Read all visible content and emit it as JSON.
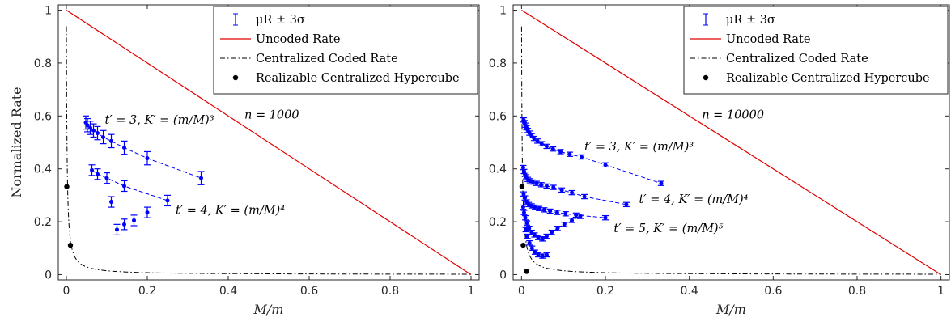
{
  "chart_data": [
    {
      "type": "scatter",
      "panel": "left",
      "xlabel": "M/m",
      "ylabel": "Normalized Rate",
      "xlim": [
        -0.02,
        1.02
      ],
      "ylim": [
        -0.02,
        1.02
      ],
      "xticks": [
        "0",
        "0.2",
        "0.4",
        "0.6",
        "0.8",
        "1"
      ],
      "yticks": [
        "0",
        "0.2",
        "0.4",
        "0.6",
        "0.8",
        "1"
      ],
      "grid": false,
      "legend_position": "top-right",
      "legend": [
        "μR ± 3σ",
        "Uncoded Rate",
        "Centralized Coded Rate",
        "Realizable Centralized Hypercube"
      ],
      "n_label": "n = 1000",
      "annotations": [
        {
          "text": "t′ = 3, K′ = (m/M)³",
          "x": 0.095,
          "y": 0.57
        },
        {
          "text": "t′ = 4, K′ = (m/M)⁴",
          "x": 0.27,
          "y": 0.23
        }
      ],
      "uncoded_rate": {
        "x": [
          0,
          1
        ],
        "y": [
          1,
          0
        ]
      },
      "hypercube_points": {
        "x": [
          0.001,
          0.01
        ],
        "y": [
          0.333,
          0.111
        ]
      },
      "series": [
        {
          "name": "t′ = 3",
          "x": [
            0.048,
            0.052,
            0.059,
            0.067,
            0.077,
            0.091,
            0.111,
            0.143,
            0.2,
            0.333
          ],
          "y": [
            0.575,
            0.565,
            0.555,
            0.545,
            0.535,
            0.52,
            0.505,
            0.48,
            0.44,
            0.365
          ],
          "err": 0.025
        },
        {
          "name": "t′ = 4",
          "x": [
            0.063,
            0.077,
            0.1,
            0.143,
            0.25
          ],
          "y": [
            0.395,
            0.38,
            0.365,
            0.335,
            0.28
          ],
          "err": 0.02
        },
        {
          "name": "t′ = 4 lower",
          "x": [
            0.111,
            0.125,
            0.143,
            0.167,
            0.2
          ],
          "y": [
            0.275,
            0.17,
            0.19,
            0.205,
            0.235
          ],
          "err": 0.02
        }
      ]
    },
    {
      "type": "scatter",
      "panel": "right",
      "xlabel": "M/m",
      "xlim": [
        -0.02,
        1.02
      ],
      "ylim": [
        -0.02,
        1.02
      ],
      "xticks": [
        "0",
        "0.2",
        "0.4",
        "0.6",
        "0.8",
        "1"
      ],
      "yticks": [
        "0",
        "0.2",
        "0.4",
        "0.6",
        "0.8",
        "1"
      ],
      "grid": false,
      "legend_position": "top-right",
      "legend": [
        "μR ± 3σ",
        "Uncoded Rate",
        "Centralized Coded Rate",
        "Realizable Centralized Hypercube"
      ],
      "n_label": "n = 10000",
      "annotations": [
        {
          "text": "t′ = 3, K′ = (m/M)³",
          "x": 0.15,
          "y": 0.47
        },
        {
          "text": "t′ = 4, K′ = (m/M)⁴",
          "x": 0.28,
          "y": 0.27
        },
        {
          "text": "t′ = 5, K′ = (m/M)⁵",
          "x": 0.22,
          "y": 0.16
        }
      ],
      "uncoded_rate": {
        "x": [
          0,
          1
        ],
        "y": [
          1,
          0
        ]
      },
      "hypercube_points": {
        "x": [
          0.001,
          0.004,
          0.012
        ],
        "y": [
          0.333,
          0.111,
          0.012
        ]
      },
      "series": [
        {
          "name": "t′ = 3",
          "x": [
            0.005,
            0.007,
            0.009,
            0.012,
            0.015,
            0.019,
            0.024,
            0.03,
            0.038,
            0.048,
            0.06,
            0.075,
            0.093,
            0.115,
            0.143,
            0.2,
            0.333
          ],
          "y": [
            0.585,
            0.575,
            0.565,
            0.555,
            0.545,
            0.535,
            0.525,
            0.515,
            0.505,
            0.495,
            0.485,
            0.475,
            0.465,
            0.455,
            0.445,
            0.415,
            0.345
          ],
          "err": 0.008
        },
        {
          "name": "t′ = 4",
          "x": [
            0.004,
            0.006,
            0.008,
            0.011,
            0.015,
            0.02,
            0.027,
            0.036,
            0.047,
            0.06,
            0.076,
            0.096,
            0.12,
            0.15,
            0.25
          ],
          "y": [
            0.405,
            0.39,
            0.38,
            0.37,
            0.36,
            0.355,
            0.35,
            0.345,
            0.34,
            0.335,
            0.33,
            0.32,
            0.31,
            0.295,
            0.265
          ],
          "err": 0.008
        },
        {
          "name": "t′ = 4 branch",
          "x": [
            0.005,
            0.008,
            0.012,
            0.017,
            0.024,
            0.032,
            0.042,
            0.054,
            0.068,
            0.085,
            0.105,
            0.13,
            0.2
          ],
          "y": [
            0.305,
            0.29,
            0.275,
            0.265,
            0.26,
            0.255,
            0.25,
            0.245,
            0.24,
            0.235,
            0.23,
            0.225,
            0.215
          ],
          "err": 0.008
        },
        {
          "name": "t′ = 5",
          "x": [
            0.004,
            0.006,
            0.009,
            0.013,
            0.018,
            0.024,
            0.031,
            0.04,
            0.05
          ],
          "y": [
            0.255,
            0.235,
            0.215,
            0.195,
            0.175,
            0.16,
            0.15,
            0.14,
            0.135
          ],
          "err": 0.008
        },
        {
          "name": "t′ = 5 rise",
          "x": [
            0.05,
            0.06,
            0.072,
            0.086,
            0.102,
            0.12,
            0.14
          ],
          "y": [
            0.135,
            0.145,
            0.16,
            0.175,
            0.19,
            0.205,
            0.22
          ],
          "err": 0.008
        },
        {
          "name": "t′ = 5 lower",
          "x": [
            0.01,
            0.014,
            0.019,
            0.025,
            0.032,
            0.04,
            0.05,
            0.06
          ],
          "y": [
            0.17,
            0.145,
            0.12,
            0.1,
            0.085,
            0.075,
            0.07,
            0.075
          ],
          "err": 0.008
        }
      ]
    }
  ]
}
